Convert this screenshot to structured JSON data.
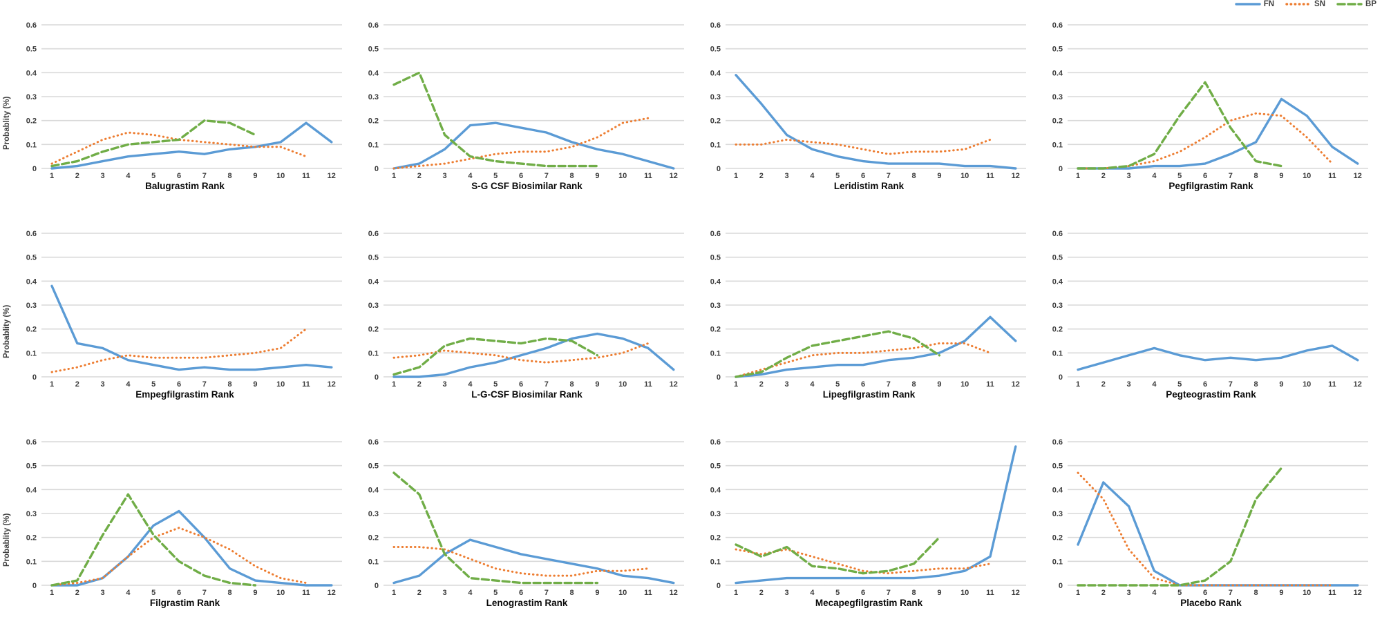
{
  "legend": {
    "items": [
      {
        "label": "FN",
        "color": "#5B9BD5",
        "dash": "solid"
      },
      {
        "label": "SN",
        "color": "#ED7D31",
        "dash": "dotted"
      },
      {
        "label": "BP",
        "color": "#70AD47",
        "dash": "dashed"
      }
    ]
  },
  "axes": {
    "ylabel": "Probablity (%)",
    "ytick_labels": [
      "0",
      "0.1",
      "0.2",
      "0.3",
      "0.4",
      "0.5",
      "0.6"
    ],
    "ylim": [
      0,
      0.6
    ],
    "grid": "horizontal"
  },
  "colors": {
    "gridline": "#D9D9D9",
    "tick_text": "#3A3A3A",
    "title_text": "#0A0A0A"
  },
  "chart_data": [
    {
      "type": "line",
      "title": "Balugrastim Rank",
      "categories": [
        "1",
        "2",
        "3",
        "4",
        "5",
        "6",
        "7",
        "8",
        "9",
        "10",
        "11",
        "12"
      ],
      "series": [
        {
          "name": "FN",
          "values": [
            0,
            0.01,
            0.03,
            0.05,
            0.06,
            0.07,
            0.06,
            0.08,
            0.09,
            0.11,
            0.19,
            0.11
          ]
        },
        {
          "name": "SN",
          "values": [
            0.02,
            0.07,
            0.12,
            0.15,
            0.14,
            0.12,
            0.11,
            0.1,
            0.09,
            0.09,
            0.05
          ]
        },
        {
          "name": "BP",
          "values": [
            0.01,
            0.03,
            0.07,
            0.1,
            0.11,
            0.12,
            0.2,
            0.19,
            0.14
          ]
        }
      ]
    },
    {
      "type": "line",
      "title": "S-G CSF Biosimilar Rank",
      "categories": [
        "1",
        "2",
        "3",
        "4",
        "5",
        "6",
        "7",
        "8",
        "9",
        "10",
        "11",
        "12"
      ],
      "series": [
        {
          "name": "FN",
          "values": [
            0,
            0.02,
            0.08,
            0.18,
            0.19,
            0.17,
            0.15,
            0.11,
            0.08,
            0.06,
            0.03,
            0
          ]
        },
        {
          "name": "SN",
          "values": [
            0,
            0.01,
            0.02,
            0.04,
            0.06,
            0.07,
            0.07,
            0.09,
            0.13,
            0.19,
            0.21
          ]
        },
        {
          "name": "BP",
          "values": [
            0.35,
            0.4,
            0.14,
            0.05,
            0.03,
            0.02,
            0.01,
            0.01,
            0.01
          ]
        }
      ]
    },
    {
      "type": "line",
      "title": "Leridistim Rank",
      "categories": [
        "1",
        "2",
        "3",
        "4",
        "5",
        "6",
        "7",
        "8",
        "9",
        "10",
        "11",
        "12"
      ],
      "series": [
        {
          "name": "FN",
          "values": [
            0.39,
            0.27,
            0.14,
            0.08,
            0.05,
            0.03,
            0.02,
            0.02,
            0.02,
            0.01,
            0.01,
            0
          ]
        },
        {
          "name": "SN",
          "values": [
            0.1,
            0.1,
            0.12,
            0.11,
            0.1,
            0.08,
            0.06,
            0.07,
            0.07,
            0.08,
            0.12
          ]
        }
      ]
    },
    {
      "type": "line",
      "title": "Pegfilgrastim Rank",
      "categories": [
        "1",
        "2",
        "3",
        "4",
        "5",
        "6",
        "7",
        "8",
        "9",
        "10",
        "11",
        "12"
      ],
      "series": [
        {
          "name": "FN",
          "values": [
            0,
            0,
            0,
            0.01,
            0.01,
            0.02,
            0.06,
            0.11,
            0.29,
            0.22,
            0.09,
            0.02
          ]
        },
        {
          "name": "SN",
          "values": [
            0,
            0,
            0.01,
            0.03,
            0.07,
            0.13,
            0.2,
            0.23,
            0.22,
            0.13,
            0.02
          ]
        },
        {
          "name": "BP",
          "values": [
            0,
            0,
            0.01,
            0.06,
            0.22,
            0.36,
            0.17,
            0.03,
            0.01
          ]
        }
      ]
    },
    {
      "type": "line",
      "title": "Empegfilgrastim Rank",
      "categories": [
        "1",
        "2",
        "3",
        "4",
        "5",
        "6",
        "7",
        "8",
        "9",
        "10",
        "11",
        "12"
      ],
      "series": [
        {
          "name": "FN",
          "values": [
            0.38,
            0.14,
            0.12,
            0.07,
            0.05,
            0.03,
            0.04,
            0.03,
            0.03,
            0.04,
            0.05,
            0.04
          ]
        },
        {
          "name": "SN",
          "values": [
            0.02,
            0.04,
            0.07,
            0.09,
            0.08,
            0.08,
            0.08,
            0.09,
            0.1,
            0.12,
            0.2
          ]
        }
      ]
    },
    {
      "type": "line",
      "title": "L-G-CSF Biosimilar Rank",
      "categories": [
        "1",
        "2",
        "3",
        "4",
        "5",
        "6",
        "7",
        "8",
        "9",
        "10",
        "11",
        "12"
      ],
      "series": [
        {
          "name": "FN",
          "values": [
            0,
            0,
            0.01,
            0.04,
            0.06,
            0.09,
            0.12,
            0.16,
            0.18,
            0.16,
            0.12,
            0.03
          ]
        },
        {
          "name": "SN",
          "values": [
            0.08,
            0.09,
            0.11,
            0.1,
            0.09,
            0.07,
            0.06,
            0.07,
            0.08,
            0.1,
            0.14
          ]
        },
        {
          "name": "BP",
          "values": [
            0.01,
            0.04,
            0.13,
            0.16,
            0.15,
            0.14,
            0.16,
            0.15,
            0.09
          ]
        }
      ]
    },
    {
      "type": "line",
      "title": "Lipegfilgrastim Rank",
      "categories": [
        "1",
        "2",
        "3",
        "4",
        "5",
        "6",
        "7",
        "8",
        "9",
        "10",
        "11",
        "12"
      ],
      "series": [
        {
          "name": "FN",
          "values": [
            0,
            0.01,
            0.03,
            0.04,
            0.05,
            0.05,
            0.07,
            0.08,
            0.1,
            0.15,
            0.25,
            0.15
          ]
        },
        {
          "name": "SN",
          "values": [
            0,
            0.03,
            0.06,
            0.09,
            0.1,
            0.1,
            0.11,
            0.12,
            0.14,
            0.14,
            0.1
          ]
        },
        {
          "name": "BP",
          "values": [
            0,
            0.02,
            0.08,
            0.13,
            0.15,
            0.17,
            0.19,
            0.16,
            0.09
          ]
        }
      ]
    },
    {
      "type": "line",
      "title": "Pegteograstim Rank",
      "categories": [
        "1",
        "2",
        "3",
        "4",
        "5",
        "6",
        "7",
        "8",
        "9",
        "10",
        "11",
        "12"
      ],
      "series": [
        {
          "name": "FN",
          "values": [
            0.03,
            0.06,
            0.09,
            0.12,
            0.09,
            0.07,
            0.08,
            0.07,
            0.08,
            0.11,
            0.13,
            0.07
          ]
        }
      ]
    },
    {
      "type": "line",
      "title": "Filgrastim Rank",
      "categories": [
        "1",
        "2",
        "3",
        "4",
        "5",
        "6",
        "7",
        "8",
        "9",
        "10",
        "11",
        "12"
      ],
      "series": [
        {
          "name": "FN",
          "values": [
            0,
            0,
            0.03,
            0.12,
            0.25,
            0.31,
            0.2,
            0.07,
            0.02,
            0.01,
            0,
            0
          ]
        },
        {
          "name": "SN",
          "values": [
            0,
            0.01,
            0.03,
            0.12,
            0.2,
            0.24,
            0.2,
            0.15,
            0.08,
            0.03,
            0.01
          ]
        },
        {
          "name": "BP",
          "values": [
            0,
            0.02,
            0.21,
            0.38,
            0.21,
            0.1,
            0.04,
            0.01,
            0
          ]
        }
      ]
    },
    {
      "type": "line",
      "title": "Lenograstim Rank",
      "categories": [
        "1",
        "2",
        "3",
        "4",
        "5",
        "6",
        "7",
        "8",
        "9",
        "10",
        "11",
        "12"
      ],
      "series": [
        {
          "name": "FN",
          "values": [
            0.01,
            0.04,
            0.13,
            0.19,
            0.16,
            0.13,
            0.11,
            0.09,
            0.07,
            0.04,
            0.03,
            0.01
          ]
        },
        {
          "name": "SN",
          "values": [
            0.16,
            0.16,
            0.15,
            0.11,
            0.07,
            0.05,
            0.04,
            0.04,
            0.06,
            0.06,
            0.07
          ]
        },
        {
          "name": "BP",
          "values": [
            0.47,
            0.38,
            0.13,
            0.03,
            0.02,
            0.01,
            0.01,
            0.01,
            0.01
          ]
        }
      ]
    },
    {
      "type": "line",
      "title": "Mecapegfilgrastim Rank",
      "categories": [
        "1",
        "2",
        "3",
        "4",
        "5",
        "6",
        "7",
        "8",
        "9",
        "10",
        "11",
        "12"
      ],
      "series": [
        {
          "name": "FN",
          "values": [
            0.01,
            0.02,
            0.03,
            0.03,
            0.03,
            0.03,
            0.03,
            0.03,
            0.04,
            0.06,
            0.12,
            0.58
          ]
        },
        {
          "name": "SN",
          "values": [
            0.15,
            0.13,
            0.15,
            0.12,
            0.09,
            0.06,
            0.05,
            0.06,
            0.07,
            0.07,
            0.09
          ]
        },
        {
          "name": "BP",
          "values": [
            0.17,
            0.12,
            0.16,
            0.08,
            0.07,
            0.05,
            0.06,
            0.09,
            0.2
          ]
        }
      ]
    },
    {
      "type": "line",
      "title": "Placebo Rank",
      "categories": [
        "1",
        "2",
        "3",
        "4",
        "5",
        "6",
        "7",
        "8",
        "9",
        "10",
        "11",
        "12"
      ],
      "series": [
        {
          "name": "FN",
          "values": [
            0.17,
            0.43,
            0.33,
            0.06,
            0,
            0,
            0,
            0,
            0,
            0,
            0,
            0
          ]
        },
        {
          "name": "SN",
          "values": [
            0.47,
            0.36,
            0.15,
            0.03,
            0,
            0,
            0,
            0,
            0,
            0,
            0
          ]
        },
        {
          "name": "BP",
          "values": [
            0,
            0,
            0,
            0,
            0,
            0.02,
            0.1,
            0.36,
            0.49
          ]
        }
      ]
    }
  ]
}
